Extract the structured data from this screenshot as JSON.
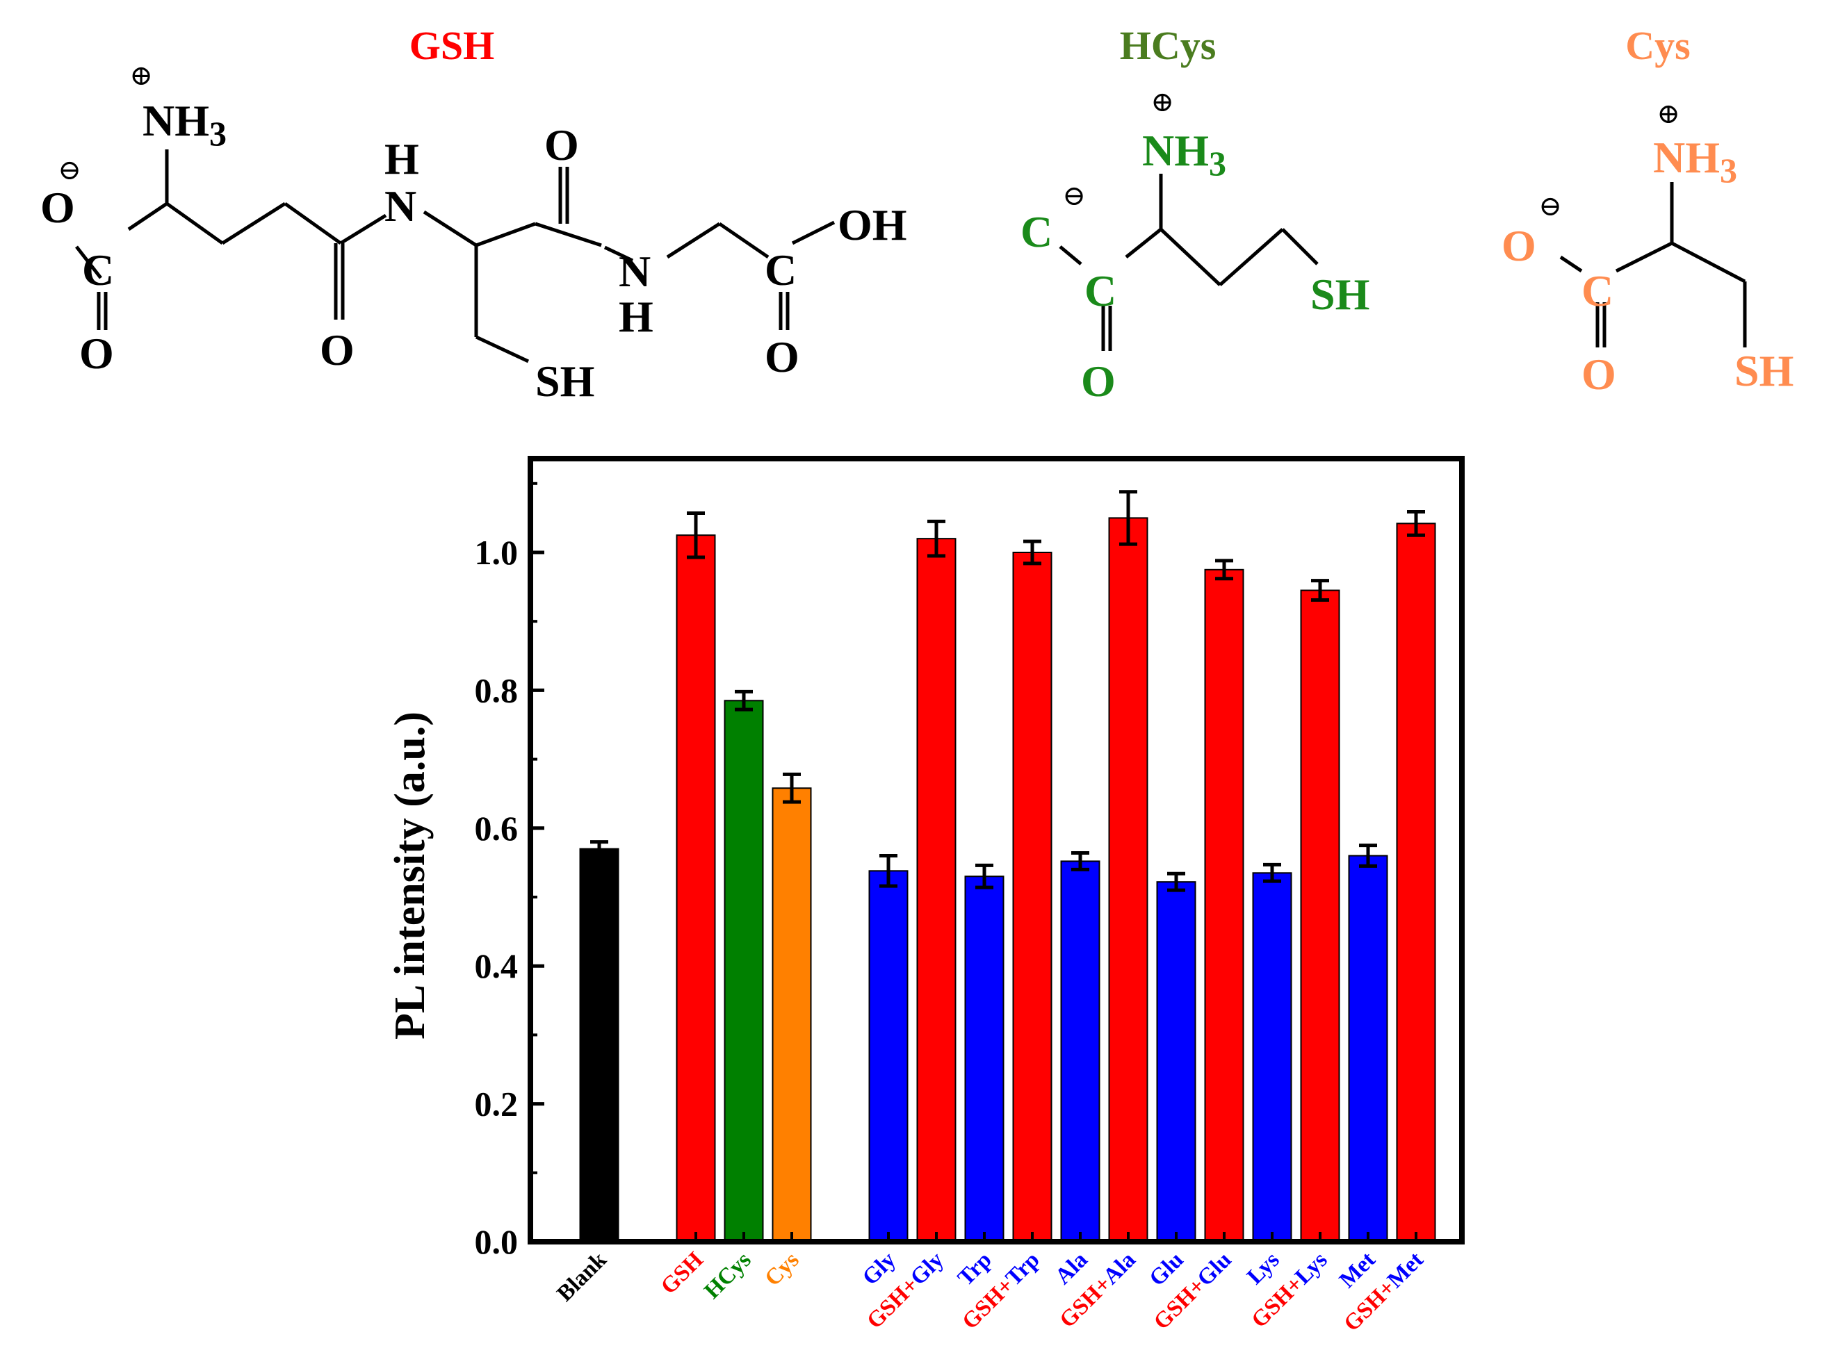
{
  "structures": {
    "gsh": {
      "name": "GSH",
      "color": "#ff0000",
      "atoms": {
        "nh3": "NH",
        "nh3_sub": "3",
        "o_minus": "O",
        "c": "C",
        "o_bottom": "O",
        "h_top": "H",
        "n_top": "N",
        "o_amide1": "O",
        "o_top": "O",
        "n_bottom": "N",
        "h_bottom": "H",
        "sh": "SH",
        "oh": "OH",
        "c_acid": "C",
        "o_acid": "O"
      },
      "charges": {
        "plus": "⊕",
        "minus": "⊖"
      }
    },
    "hcys": {
      "name": "HCys",
      "title_color": "#4a7c1f",
      "atom_color": "#1a8a1a",
      "atoms": {
        "nh3": "NH",
        "nh3_sub": "3",
        "c_minus": "C",
        "c": "C",
        "o": "O",
        "sh": "SH"
      },
      "charges": {
        "plus": "⊕",
        "minus": "⊖"
      }
    },
    "cys": {
      "name": "Cys",
      "color": "#ff8c50",
      "atoms": {
        "nh3": "NH",
        "nh3_sub": "3",
        "o_minus": "O",
        "c": "C",
        "o": "O",
        "sh": "SH"
      },
      "charges": {
        "plus": "⊕",
        "minus": "⊖"
      }
    }
  },
  "chart_data": {
    "type": "bar",
    "ylabel": "PL intensity (a.u.)",
    "xlabel": "",
    "ylim": [
      0,
      1.12
    ],
    "yticks": [
      "0.0",
      "0.2",
      "0.4",
      "0.6",
      "0.8",
      "1.0"
    ],
    "ytick_values": [
      0,
      0.2,
      0.4,
      0.6,
      0.8,
      1.0
    ],
    "grid": false,
    "legend": "none",
    "bars": [
      {
        "label": "Blank",
        "value": 0.57,
        "error": 0.01,
        "color": "#000000",
        "label_color": "#000000",
        "label_parts": [
          {
            "t": "Blank",
            "c": "#000000"
          }
        ]
      },
      {
        "label": "GSH",
        "value": 1.025,
        "error": 0.032,
        "color": "#ff0000",
        "label_color": "#ff0000",
        "label_parts": [
          {
            "t": "GSH",
            "c": "#ff0000"
          }
        ]
      },
      {
        "label": "HCys",
        "value": 0.785,
        "error": 0.013,
        "color": "#008000",
        "label_color": "#008000",
        "label_parts": [
          {
            "t": "HCys",
            "c": "#008000"
          }
        ]
      },
      {
        "label": "Cys",
        "value": 0.658,
        "error": 0.02,
        "color": "#ff8000",
        "label_color": "#ff8000",
        "label_parts": [
          {
            "t": "Cys",
            "c": "#ff8000"
          }
        ]
      },
      {
        "label": "Gly",
        "value": 0.538,
        "error": 0.022,
        "color": "#0000ff",
        "label_color": "#0000ff",
        "label_parts": [
          {
            "t": "Gly",
            "c": "#0000ff"
          }
        ]
      },
      {
        "label": "GSH+Gly",
        "value": 1.02,
        "error": 0.025,
        "color": "#ff0000",
        "label_color": "#ff0000",
        "label_parts": [
          {
            "t": "GSH",
            "c": "#ff0000"
          },
          {
            "t": "+",
            "c": "#ff0000"
          },
          {
            "t": "Gly",
            "c": "#0000ff"
          }
        ]
      },
      {
        "label": "Trp",
        "value": 0.53,
        "error": 0.016,
        "color": "#0000ff",
        "label_color": "#0000ff",
        "label_parts": [
          {
            "t": "Trp",
            "c": "#0000ff"
          }
        ]
      },
      {
        "label": "GSH+Trp",
        "value": 1.0,
        "error": 0.016,
        "color": "#ff0000",
        "label_color": "#ff0000",
        "label_parts": [
          {
            "t": "GSH",
            "c": "#ff0000"
          },
          {
            "t": "+",
            "c": "#ff0000"
          },
          {
            "t": "Trp",
            "c": "#0000ff"
          }
        ]
      },
      {
        "label": "Ala",
        "value": 0.552,
        "error": 0.012,
        "color": "#0000ff",
        "label_color": "#0000ff",
        "label_parts": [
          {
            "t": "Ala",
            "c": "#0000ff"
          }
        ]
      },
      {
        "label": "GSH+Ala",
        "value": 1.05,
        "error": 0.038,
        "color": "#ff0000",
        "label_color": "#ff0000",
        "label_parts": [
          {
            "t": "GSH",
            "c": "#ff0000"
          },
          {
            "t": "+",
            "c": "#ff0000"
          },
          {
            "t": "Ala",
            "c": "#0000ff"
          }
        ]
      },
      {
        "label": "Glu",
        "value": 0.522,
        "error": 0.012,
        "color": "#0000ff",
        "label_color": "#0000ff",
        "label_parts": [
          {
            "t": "Glu",
            "c": "#0000ff"
          }
        ]
      },
      {
        "label": "GSH+Glu",
        "value": 0.975,
        "error": 0.013,
        "color": "#ff0000",
        "label_color": "#ff0000",
        "label_parts": [
          {
            "t": "GSH",
            "c": "#ff0000"
          },
          {
            "t": "+",
            "c": "#ff0000"
          },
          {
            "t": "Glu",
            "c": "#0000ff"
          }
        ]
      },
      {
        "label": "Lys",
        "value": 0.535,
        "error": 0.012,
        "color": "#0000ff",
        "label_color": "#0000ff",
        "label_parts": [
          {
            "t": "Lys",
            "c": "#0000ff"
          }
        ]
      },
      {
        "label": "GSH+Lys",
        "value": 0.945,
        "error": 0.014,
        "color": "#ff0000",
        "label_color": "#ff0000",
        "label_parts": [
          {
            "t": "GSH",
            "c": "#ff0000"
          },
          {
            "t": "+",
            "c": "#ff0000"
          },
          {
            "t": "Lys",
            "c": "#0000ff"
          }
        ]
      },
      {
        "label": "Met",
        "value": 0.56,
        "error": 0.015,
        "color": "#0000ff",
        "label_color": "#0000ff",
        "label_parts": [
          {
            "t": "Met",
            "c": "#0000ff"
          }
        ]
      },
      {
        "label": "GSH+Met",
        "value": 1.042,
        "error": 0.017,
        "color": "#ff0000",
        "label_color": "#ff0000",
        "label_parts": [
          {
            "t": "GSH",
            "c": "#ff0000"
          },
          {
            "t": "+",
            "c": "#ff0000"
          },
          {
            "t": "Met",
            "c": "#0000ff"
          }
        ]
      }
    ]
  }
}
